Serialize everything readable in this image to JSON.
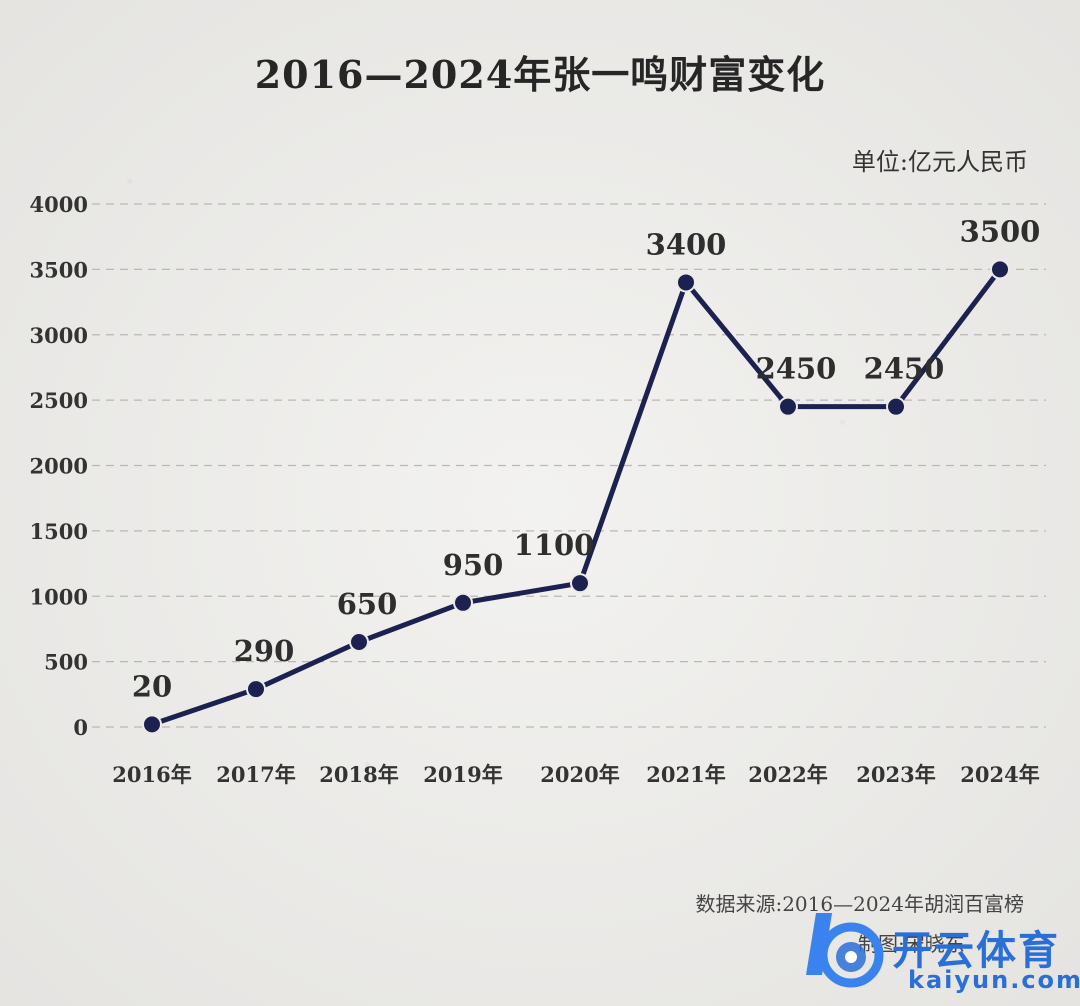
{
  "chart_data": {
    "type": "line",
    "title": "2016—2024年张一鸣财富变化",
    "unit": "单位:亿元人民币",
    "categories": [
      "2016年",
      "2017年",
      "2018年",
      "2019年",
      "2020年",
      "2021年",
      "2022年",
      "2023年",
      "2024年"
    ],
    "values": [
      20,
      290,
      650,
      950,
      1100,
      3400,
      2450,
      2450,
      3500
    ],
    "yticks": [
      0,
      500,
      1000,
      1500,
      2000,
      2500,
      3000,
      3500,
      4000
    ],
    "ylim": [
      0,
      4000
    ],
    "grid": true,
    "line_color": "#1c2150"
  },
  "footer": {
    "source": "数据来源:2016—2024年胡润百富榜",
    "maker": "制图:宋晓东"
  },
  "watermark": {
    "cn": "开云体育",
    "en": "kaiyun.com",
    "color": "#2a6fd8"
  }
}
